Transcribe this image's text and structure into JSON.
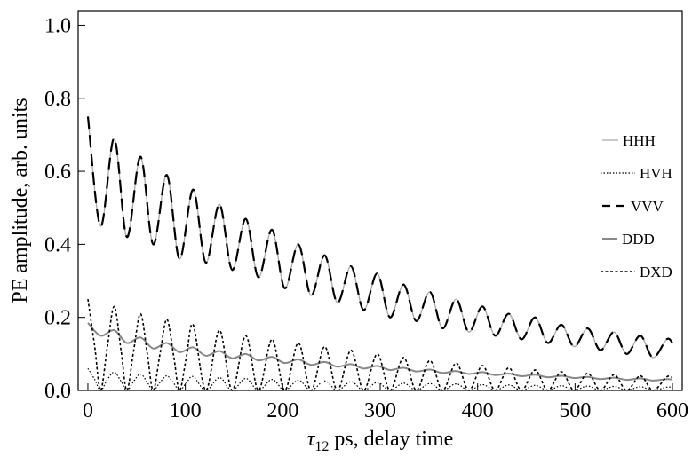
{
  "chart_data": {
    "type": "line",
    "title": "",
    "xlabel": "τ12 ps, delay time",
    "xlabel_symbol": "τ",
    "xlabel_subscript": "12",
    "xlabel_rest": " ps, delay time",
    "ylabel": "PE amplitude, arb. units",
    "xlim": [
      -10,
      610
    ],
    "ylim": [
      0,
      1.04
    ],
    "xticks": [
      0,
      100,
      200,
      300,
      400,
      500,
      600
    ],
    "yticks": [
      0.0,
      0.2,
      0.4,
      0.6,
      0.8,
      1.0
    ],
    "xtick_labels": [
      "0",
      "100",
      "200",
      "300",
      "400",
      "500",
      "600"
    ],
    "ytick_labels": [
      "0.0",
      "0.2",
      "0.4",
      "0.6",
      "0.8",
      "1.0"
    ],
    "grid": false,
    "legend_position": "right",
    "series": [
      {
        "name": "HHH",
        "color": "#aaaaaa",
        "style": "solid",
        "points": [
          [
            0,
            0.75
          ],
          [
            13,
            0.45
          ],
          [
            27,
            0.69
          ],
          [
            40,
            0.42
          ],
          [
            54,
            0.64
          ],
          [
            67,
            0.4
          ],
          [
            81,
            0.59
          ],
          [
            94,
            0.36
          ],
          [
            108,
            0.55
          ],
          [
            121,
            0.35
          ],
          [
            135,
            0.51
          ],
          [
            148,
            0.33
          ],
          [
            162,
            0.47
          ],
          [
            175,
            0.31
          ],
          [
            189,
            0.44
          ],
          [
            202,
            0.28
          ],
          [
            216,
            0.4
          ],
          [
            229,
            0.26
          ],
          [
            243,
            0.37
          ],
          [
            256,
            0.24
          ],
          [
            270,
            0.34
          ],
          [
            283,
            0.22
          ],
          [
            297,
            0.32
          ],
          [
            310,
            0.2
          ],
          [
            324,
            0.29
          ],
          [
            337,
            0.19
          ],
          [
            351,
            0.27
          ],
          [
            364,
            0.17
          ],
          [
            378,
            0.25
          ],
          [
            391,
            0.16
          ],
          [
            405,
            0.23
          ],
          [
            418,
            0.15
          ],
          [
            432,
            0.21
          ],
          [
            445,
            0.14
          ],
          [
            459,
            0.2
          ],
          [
            472,
            0.13
          ],
          [
            486,
            0.18
          ],
          [
            499,
            0.12
          ],
          [
            513,
            0.17
          ],
          [
            526,
            0.11
          ],
          [
            540,
            0.16
          ],
          [
            553,
            0.1
          ],
          [
            567,
            0.15
          ],
          [
            580,
            0.09
          ],
          [
            594,
            0.14
          ],
          [
            600,
            0.13
          ]
        ]
      },
      {
        "name": "HVH",
        "color": "#000000",
        "style": "dotted",
        "points": [
          [
            0,
            0.06
          ],
          [
            7,
            0.03
          ],
          [
            13,
            0.0
          ],
          [
            20,
            0.03
          ],
          [
            27,
            0.05
          ],
          [
            34,
            0.025
          ],
          [
            40,
            0.0
          ],
          [
            47,
            0.025
          ],
          [
            54,
            0.045
          ],
          [
            61,
            0.022
          ],
          [
            67,
            0.0
          ],
          [
            74,
            0.022
          ],
          [
            81,
            0.04
          ],
          [
            88,
            0.02
          ],
          [
            94,
            0.0
          ],
          [
            101,
            0.02
          ],
          [
            108,
            0.038
          ],
          [
            121,
            0.0
          ],
          [
            135,
            0.035
          ],
          [
            148,
            0.0
          ],
          [
            162,
            0.033
          ],
          [
            175,
            0.0
          ],
          [
            189,
            0.03
          ],
          [
            202,
            0.0
          ],
          [
            216,
            0.028
          ],
          [
            229,
            0.0
          ],
          [
            243,
            0.026
          ],
          [
            256,
            0.0
          ],
          [
            270,
            0.024
          ],
          [
            283,
            0.0
          ],
          [
            297,
            0.022
          ],
          [
            310,
            0.0
          ],
          [
            324,
            0.02
          ],
          [
            337,
            0.0
          ],
          [
            351,
            0.019
          ],
          [
            364,
            0.0
          ],
          [
            378,
            0.018
          ],
          [
            391,
            0.0
          ],
          [
            405,
            0.016
          ],
          [
            418,
            0.0
          ],
          [
            432,
            0.015
          ],
          [
            445,
            0.0
          ],
          [
            459,
            0.014
          ],
          [
            472,
            0.0
          ],
          [
            486,
            0.013
          ],
          [
            499,
            0.0
          ],
          [
            513,
            0.012
          ],
          [
            526,
            0.0
          ],
          [
            540,
            0.011
          ],
          [
            553,
            0.0
          ],
          [
            567,
            0.01
          ],
          [
            580,
            0.0
          ],
          [
            594,
            0.009
          ],
          [
            600,
            0.008
          ]
        ]
      },
      {
        "name": "VVV",
        "color": "#000000",
        "style": "dashed",
        "points": [
          [
            0,
            0.75
          ],
          [
            13,
            0.45
          ],
          [
            27,
            0.69
          ],
          [
            40,
            0.42
          ],
          [
            54,
            0.64
          ],
          [
            67,
            0.4
          ],
          [
            81,
            0.59
          ],
          [
            94,
            0.36
          ],
          [
            108,
            0.55
          ],
          [
            121,
            0.35
          ],
          [
            135,
            0.51
          ],
          [
            148,
            0.33
          ],
          [
            162,
            0.47
          ],
          [
            175,
            0.31
          ],
          [
            189,
            0.44
          ],
          [
            202,
            0.28
          ],
          [
            216,
            0.4
          ],
          [
            229,
            0.26
          ],
          [
            243,
            0.37
          ],
          [
            256,
            0.24
          ],
          [
            270,
            0.34
          ],
          [
            283,
            0.22
          ],
          [
            297,
            0.32
          ],
          [
            310,
            0.2
          ],
          [
            324,
            0.29
          ],
          [
            337,
            0.19
          ],
          [
            351,
            0.27
          ],
          [
            364,
            0.17
          ],
          [
            378,
            0.25
          ],
          [
            391,
            0.16
          ],
          [
            405,
            0.23
          ],
          [
            418,
            0.15
          ],
          [
            432,
            0.21
          ],
          [
            445,
            0.14
          ],
          [
            459,
            0.2
          ],
          [
            472,
            0.13
          ],
          [
            486,
            0.18
          ],
          [
            499,
            0.12
          ],
          [
            513,
            0.17
          ],
          [
            526,
            0.11
          ],
          [
            540,
            0.16
          ],
          [
            553,
            0.1
          ],
          [
            567,
            0.15
          ],
          [
            580,
            0.09
          ],
          [
            594,
            0.14
          ],
          [
            600,
            0.13
          ]
        ]
      },
      {
        "name": "DDD",
        "color": "#888888",
        "style": "solid",
        "points": [
          [
            0,
            0.185
          ],
          [
            13,
            0.15
          ],
          [
            27,
            0.165
          ],
          [
            40,
            0.13
          ],
          [
            54,
            0.145
          ],
          [
            67,
            0.115
          ],
          [
            81,
            0.13
          ],
          [
            94,
            0.105
          ],
          [
            108,
            0.118
          ],
          [
            121,
            0.095
          ],
          [
            135,
            0.108
          ],
          [
            148,
            0.088
          ],
          [
            162,
            0.1
          ],
          [
            175,
            0.082
          ],
          [
            189,
            0.092
          ],
          [
            202,
            0.075
          ],
          [
            216,
            0.085
          ],
          [
            229,
            0.07
          ],
          [
            243,
            0.078
          ],
          [
            256,
            0.065
          ],
          [
            270,
            0.072
          ],
          [
            283,
            0.06
          ],
          [
            297,
            0.067
          ],
          [
            310,
            0.056
          ],
          [
            324,
            0.062
          ],
          [
            337,
            0.052
          ],
          [
            351,
            0.057
          ],
          [
            364,
            0.048
          ],
          [
            378,
            0.053
          ],
          [
            391,
            0.045
          ],
          [
            405,
            0.05
          ],
          [
            418,
            0.042
          ],
          [
            432,
            0.046
          ],
          [
            445,
            0.039
          ],
          [
            459,
            0.043
          ],
          [
            472,
            0.036
          ],
          [
            486,
            0.04
          ],
          [
            499,
            0.034
          ],
          [
            513,
            0.037
          ],
          [
            526,
            0.031
          ],
          [
            540,
            0.035
          ],
          [
            553,
            0.029
          ],
          [
            567,
            0.033
          ],
          [
            580,
            0.027
          ],
          [
            594,
            0.031
          ],
          [
            600,
            0.03
          ]
        ]
      },
      {
        "name": "DXD",
        "color": "#000000",
        "style": "dotted-dense",
        "points": [
          [
            0,
            0.25
          ],
          [
            7,
            0.12
          ],
          [
            13,
            0.0
          ],
          [
            20,
            0.12
          ],
          [
            27,
            0.23
          ],
          [
            34,
            0.11
          ],
          [
            40,
            0.0
          ],
          [
            47,
            0.11
          ],
          [
            54,
            0.21
          ],
          [
            61,
            0.1
          ],
          [
            67,
            0.0
          ],
          [
            74,
            0.1
          ],
          [
            81,
            0.195
          ],
          [
            88,
            0.095
          ],
          [
            94,
            0.0
          ],
          [
            101,
            0.09
          ],
          [
            108,
            0.18
          ],
          [
            121,
            0.0
          ],
          [
            135,
            0.165
          ],
          [
            148,
            0.0
          ],
          [
            162,
            0.15
          ],
          [
            175,
            0.0
          ],
          [
            189,
            0.14
          ],
          [
            202,
            0.0
          ],
          [
            216,
            0.13
          ],
          [
            229,
            0.0
          ],
          [
            243,
            0.12
          ],
          [
            256,
            0.0
          ],
          [
            270,
            0.11
          ],
          [
            283,
            0.0
          ],
          [
            297,
            0.1
          ],
          [
            310,
            0.0
          ],
          [
            324,
            0.09
          ],
          [
            337,
            0.0
          ],
          [
            351,
            0.082
          ],
          [
            364,
            0.0
          ],
          [
            378,
            0.075
          ],
          [
            391,
            0.0
          ],
          [
            405,
            0.068
          ],
          [
            418,
            0.0
          ],
          [
            432,
            0.062
          ],
          [
            445,
            0.0
          ],
          [
            459,
            0.056
          ],
          [
            472,
            0.0
          ],
          [
            486,
            0.051
          ],
          [
            499,
            0.0
          ],
          [
            513,
            0.047
          ],
          [
            526,
            0.0
          ],
          [
            540,
            0.043
          ],
          [
            553,
            0.0
          ],
          [
            567,
            0.04
          ],
          [
            580,
            0.0
          ],
          [
            594,
            0.037
          ],
          [
            600,
            0.035
          ]
        ]
      }
    ]
  }
}
